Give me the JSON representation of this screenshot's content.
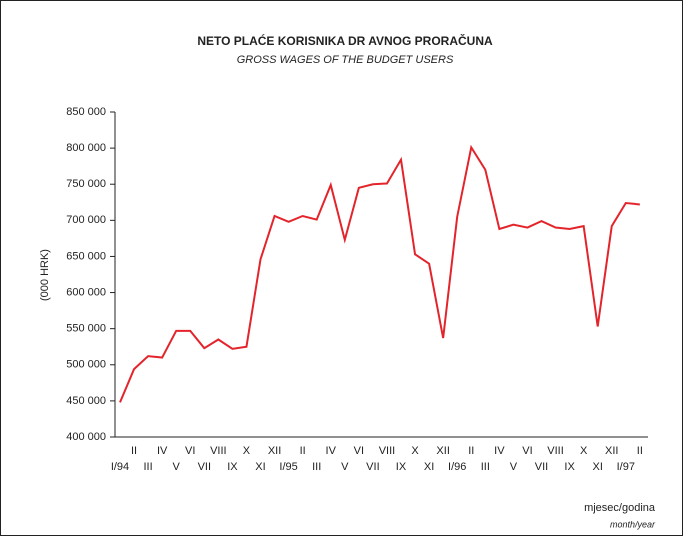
{
  "chart_data": {
    "type": "line",
    "title": "NETO PLAĆE KORISNIKA DR  AVNOG PRORAČUNA",
    "subtitle": "GROSS WAGES OF THE BUDGET USERS",
    "y_label": "(000 HRK)",
    "x_label": "mjesec/godina",
    "x_label_en": "month/year",
    "categories": [
      "I/94",
      "II",
      "III",
      "IV",
      "V",
      "VI",
      "VII",
      "VIII",
      "IX",
      "X",
      "XI",
      "XII",
      "I/95",
      "II",
      "III",
      "IV",
      "V",
      "VI",
      "VII",
      "VIII",
      "IX",
      "X",
      "XI",
      "XII",
      "I/96",
      "II",
      "III",
      "IV",
      "V",
      "VI",
      "VII",
      "VIII",
      "IX",
      "X",
      "XI",
      "XII",
      "I/97",
      "II"
    ],
    "series": [
      {
        "name": "Neto plaće",
        "color": "#e3242b",
        "values": [
          448000,
          494000,
          512000,
          510000,
          547000,
          547000,
          523000,
          535000,
          522000,
          525000,
          646000,
          706000,
          698000,
          706000,
          701000,
          749000,
          673000,
          745000,
          750000,
          751000,
          784000,
          653000,
          640000,
          537000,
          705000,
          801000,
          770000,
          688000,
          694000,
          690000,
          699000,
          690000,
          688000,
          692000,
          553000,
          692000,
          724000,
          722000
        ]
      }
    ],
    "ylim": [
      400000,
      850000
    ],
    "yticks": [
      {
        "value": 400000,
        "label": "400 000"
      },
      {
        "value": 450000,
        "label": "450 000"
      },
      {
        "value": 500000,
        "label": "500 000"
      },
      {
        "value": 550000,
        "label": "550 000"
      },
      {
        "value": 600000,
        "label": "600 000"
      },
      {
        "value": 650000,
        "label": "650 000"
      },
      {
        "value": 700000,
        "label": "700 000"
      },
      {
        "value": 750000,
        "label": "750 000"
      },
      {
        "value": 800000,
        "label": "800 000"
      },
      {
        "value": 850000,
        "label": "850 000"
      }
    ]
  }
}
